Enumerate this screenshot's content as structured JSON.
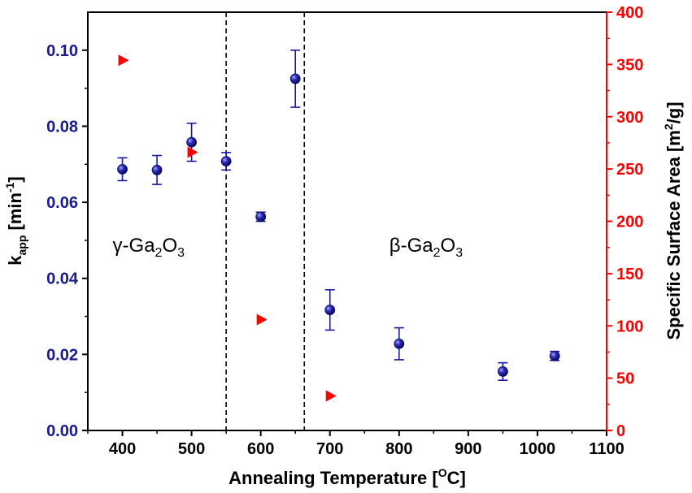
{
  "chart_data": {
    "type": "scatter",
    "x_axis": {
      "label": "Annealing Temperature [",
      "label_sup": "O",
      "label_end": "C]",
      "range": [
        350,
        1100
      ],
      "ticks": [
        "400",
        "500",
        "600",
        "700",
        "800",
        "900",
        "1000",
        "1100"
      ]
    },
    "y_left": {
      "label_main": "k",
      "label_sub": "app",
      "label_unit": " [min",
      "label_sup": "-1",
      "label_end": "]",
      "range": [
        0.0,
        0.11
      ],
      "ticks": [
        "0.00",
        "0.02",
        "0.04",
        "0.06",
        "0.08",
        "0.10"
      ],
      "color": "#1a1a8c"
    },
    "y_right": {
      "label": "Specific Surface Area [m",
      "label_sup": "2",
      "label_end": "/g]",
      "range": [
        0,
        400
      ],
      "ticks": [
        "0",
        "50",
        "100",
        "150",
        "200",
        "250",
        "300",
        "350",
        "400"
      ],
      "color": "#ff0000"
    },
    "series": [
      {
        "name": "k_app",
        "axis": "left",
        "marker": "circle",
        "color": "#1a1a9e",
        "points": [
          {
            "x": 400,
            "y": 0.0687,
            "err": 0.003
          },
          {
            "x": 450,
            "y": 0.0685,
            "err": 0.0038
          },
          {
            "x": 500,
            "y": 0.0758,
            "err": 0.005
          },
          {
            "x": 550,
            "y": 0.0708,
            "err": 0.0023
          },
          {
            "x": 600,
            "y": 0.0562,
            "err": 0.0012
          },
          {
            "x": 650,
            "y": 0.0925,
            "err": 0.0075
          },
          {
            "x": 700,
            "y": 0.0317,
            "err": 0.0053
          },
          {
            "x": 800,
            "y": 0.0228,
            "err": 0.0042
          },
          {
            "x": 950,
            "y": 0.0155,
            "err": 0.0023
          },
          {
            "x": 1025,
            "y": 0.0196,
            "err": 0.0012
          }
        ]
      },
      {
        "name": "Specific Surface Area",
        "axis": "right",
        "marker": "triangle-right",
        "color": "#ff0000",
        "points": [
          {
            "x": 400,
            "y": 354
          },
          {
            "x": 500,
            "y": 266
          },
          {
            "x": 600,
            "y": 106
          },
          {
            "x": 700,
            "y": 33
          }
        ]
      }
    ],
    "phase_boundaries": [
      550,
      663
    ],
    "annotations": [
      {
        "text_pre": "γ-Ga",
        "sub1": "2",
        "text_mid": "O",
        "sub2": "3",
        "x": 400,
        "y_left": 0.047
      },
      {
        "text_pre": "β-Ga",
        "sub1": "2",
        "text_mid": "O",
        "sub2": "3",
        "x": 800,
        "y_left": 0.047
      }
    ],
    "grid": false
  }
}
